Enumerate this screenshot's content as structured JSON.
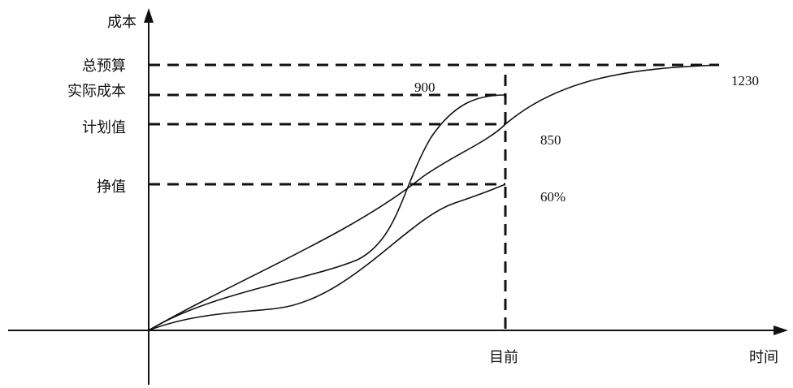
{
  "chart_data": {
    "type": "line",
    "title": "",
    "xlabel": "时间",
    "ylabel": "成本",
    "x_marker_label": "目前",
    "y_levels": [
      {
        "label": "总预算",
        "value": 1230
      },
      {
        "label": "实际成本",
        "value": 900
      },
      {
        "label": "计划值",
        "value": 850
      },
      {
        "label": "挣值",
        "value": 60,
        "unit": "%"
      }
    ],
    "value_labels": {
      "budget": "1230",
      "actual": "900",
      "planned": "850",
      "earned": "60%"
    },
    "series": [
      {
        "key": "planned",
        "values": [
          0,
          850,
          1230
        ]
      },
      {
        "key": "actual",
        "values": [
          0,
          900
        ]
      },
      {
        "key": "earned",
        "values": [
          0,
          60
        ]
      }
    ],
    "grid": false,
    "legend": "none",
    "colors": {
      "line": "#111111",
      "background": "#ffffff"
    }
  }
}
